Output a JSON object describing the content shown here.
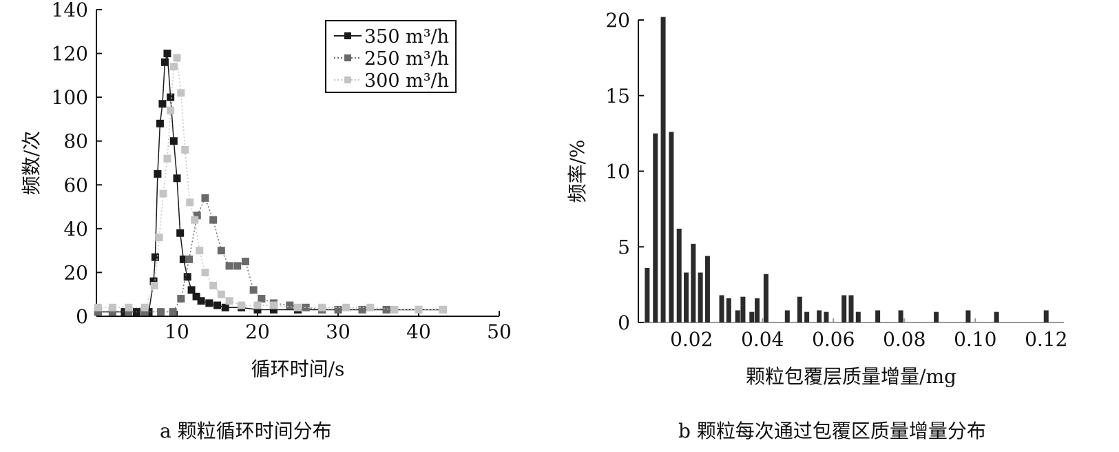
{
  "captions": {
    "a": "a 颗粒循环时间分布",
    "b": "b 颗粒每次通过包覆区质量增量分布"
  },
  "chart_data": [
    {
      "id": "a",
      "type": "line",
      "xlabel": "循环时间/s",
      "ylabel": "频数/次",
      "xlim": [
        0,
        50
      ],
      "ylim": [
        0,
        140
      ],
      "xticks": [
        10,
        20,
        30,
        40,
        50
      ],
      "yticks": [
        0,
        20,
        40,
        60,
        80,
        100,
        120,
        140
      ],
      "grid": false,
      "legend": "top-right",
      "series": [
        {
          "name": "350 m³/h",
          "color": "#1a1a1a",
          "x": [
            0.2,
            2,
            3.5,
            5,
            6.5,
            7.1,
            7.3,
            7.6,
            7.9,
            8.2,
            8.5,
            8.8,
            9.2,
            9.6,
            10,
            10.4,
            10.8,
            11.3,
            11.8,
            12.4,
            13,
            14,
            15,
            16,
            18,
            20,
            22,
            25,
            28,
            30,
            33,
            36,
            40,
            43
          ],
          "y": [
            2,
            2,
            2,
            2,
            2,
            16,
            27,
            65,
            88,
            97,
            116,
            120,
            100,
            80,
            63,
            38,
            26,
            18,
            12,
            9,
            7,
            6,
            5,
            4,
            4,
            3,
            3,
            3,
            3,
            3,
            3,
            3,
            3,
            3
          ]
        },
        {
          "name": "250 m³/h",
          "color": "#6a6a6a",
          "x": [
            0.2,
            2,
            4,
            6,
            8,
            9.5,
            10.5,
            11.5,
            12.5,
            13.5,
            14.5,
            15.5,
            16.5,
            17.5,
            18.5,
            19.5,
            20.5,
            22,
            24,
            26,
            28,
            30,
            33,
            36,
            40,
            43
          ],
          "y": [
            2,
            2,
            2,
            2,
            2,
            2,
            8,
            26,
            46,
            54,
            44,
            30,
            23,
            23,
            25,
            12,
            8,
            6,
            5,
            4,
            3,
            3,
            3,
            3,
            3,
            3
          ]
        },
        {
          "name": "300 m³/h",
          "color": "#c4c4c4",
          "x": [
            0.2,
            2,
            4,
            6,
            7.2,
            7.8,
            8.3,
            8.8,
            9.2,
            9.6,
            10,
            10.5,
            11,
            11.6,
            12.2,
            12.8,
            13.5,
            14.5,
            15.5,
            16.5,
            18,
            20,
            22,
            25,
            28,
            31,
            34,
            37,
            40,
            43
          ],
          "y": [
            4,
            4,
            4,
            4,
            14,
            36,
            56,
            72,
            94,
            114,
            118,
            102,
            76,
            52,
            44,
            30,
            20,
            14,
            10,
            7,
            5,
            5,
            5,
            4,
            4,
            4,
            4,
            3,
            3,
            3
          ]
        }
      ]
    },
    {
      "id": "b",
      "type": "bar",
      "xlabel": "颗粒包覆层质量增量/mg",
      "ylabel": "频率/%",
      "xlim": [
        0.005,
        0.125
      ],
      "ylim": [
        0,
        20
      ],
      "xticks": [
        "0.02",
        "0.04",
        "0.06",
        "0.08",
        "0.10",
        "0.12"
      ],
      "xtick_values": [
        0.02,
        0.04,
        0.06,
        0.08,
        0.1,
        0.12
      ],
      "yticks": [
        0,
        5,
        10,
        15,
        20
      ],
      "grid": false,
      "bar_color": "#2b2b2b",
      "x": [
        0.0075,
        0.0098,
        0.012,
        0.0143,
        0.0165,
        0.0185,
        0.0205,
        0.0225,
        0.0245,
        0.0285,
        0.0305,
        0.033,
        0.0345,
        0.037,
        0.0385,
        0.041,
        0.047,
        0.0505,
        0.0525,
        0.056,
        0.058,
        0.063,
        0.065,
        0.067,
        0.0725,
        0.079,
        0.089,
        0.098,
        0.106,
        0.12
      ],
      "y": [
        3.6,
        12.5,
        20.2,
        12.6,
        6.2,
        3.3,
        5.2,
        3.3,
        4.4,
        1.8,
        1.6,
        0.8,
        1.7,
        0.7,
        1.6,
        3.2,
        0.8,
        1.7,
        0.7,
        0.8,
        0.7,
        1.8,
        1.8,
        0.7,
        0.8,
        0.8,
        0.7,
        0.8,
        0.7,
        0.8
      ]
    }
  ]
}
